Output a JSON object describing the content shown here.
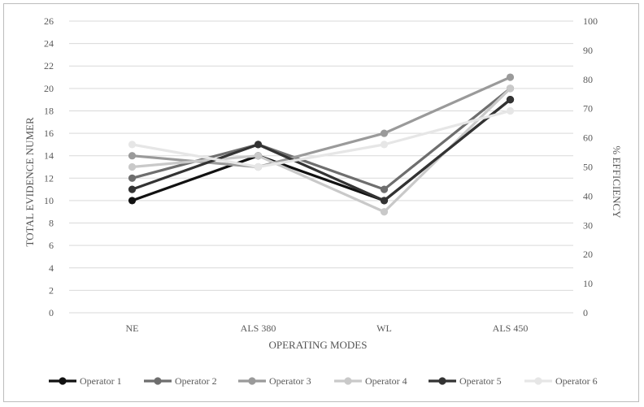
{
  "chart_data": {
    "type": "line",
    "title": "",
    "xlabel": "OPERATING MODES",
    "ylabel": "TOTAL EVIDENCE NUMER",
    "y2label": "% EFFICIENCY",
    "categories": [
      "NE",
      "ALS 380",
      "WL",
      "ALS 450"
    ],
    "ylim": [
      0,
      26
    ],
    "yticks": [
      "0",
      "2",
      "4",
      "6",
      "8",
      "10",
      "12",
      "14",
      "16",
      "18",
      "20",
      "22",
      "24",
      "26"
    ],
    "y2lim": [
      0,
      100
    ],
    "y2ticks": [
      "0",
      "10",
      "20",
      "30",
      "40",
      "50",
      "60",
      "70",
      "80",
      "90",
      "100"
    ],
    "grid": true,
    "legend_position": "bottom",
    "series": [
      {
        "name": "Operator 1",
        "color": "#111111",
        "values": [
          10,
          14,
          10,
          19
        ]
      },
      {
        "name": "Operator 2",
        "color": "#6e6e6e",
        "values": [
          12,
          15,
          11,
          20
        ]
      },
      {
        "name": "Operator 3",
        "color": "#9a9a9a",
        "values": [
          14,
          13,
          16,
          21
        ]
      },
      {
        "name": "Operator 4",
        "color": "#c9c9c9",
        "values": [
          13,
          14,
          9,
          20
        ]
      },
      {
        "name": "Operator 5",
        "color": "#333333",
        "values": [
          11,
          15,
          10,
          19
        ]
      },
      {
        "name": "Operator 6",
        "color": "#e6e6e6",
        "values": [
          15,
          13,
          15,
          18
        ]
      }
    ]
  }
}
